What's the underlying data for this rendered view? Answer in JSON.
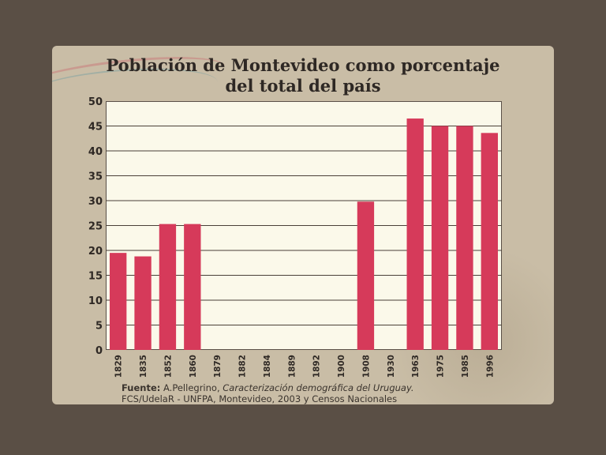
{
  "title_line1": "Población de Montevideo como porcentaje",
  "title_line2": "del total del país",
  "source": {
    "label": "Fuente:",
    "author": "A.Pellegrino,",
    "work": "Caracterización demográfica del Uruguay.",
    "line2": "FCS/UdelaR - UNFPA, Montevideo, 2003 y Censos Nacionales"
  },
  "colors": {
    "bar": "#d63a5a",
    "plot_bg": "#fbf9ea",
    "card_bg": "#c9bda6",
    "page_bg": "#5a4f45"
  },
  "chart_data": {
    "type": "bar",
    "title": "Población de Montevideo como porcentaje del total del país",
    "categories": [
      "1829",
      "1835",
      "1852",
      "1860",
      "1879",
      "1882",
      "1884",
      "1889",
      "1892",
      "1900",
      "1908",
      "1930",
      "1963",
      "1975",
      "1985",
      "1996"
    ],
    "values": [
      19.5,
      18.8,
      25.3,
      25.3,
      null,
      null,
      null,
      null,
      null,
      null,
      29.8,
      null,
      46.5,
      45,
      45,
      43.6
    ],
    "ylim": [
      0,
      50
    ],
    "yticks": [
      0,
      5,
      10,
      15,
      20,
      25,
      30,
      35,
      40,
      45,
      50
    ],
    "grid": true,
    "legend": "none"
  }
}
